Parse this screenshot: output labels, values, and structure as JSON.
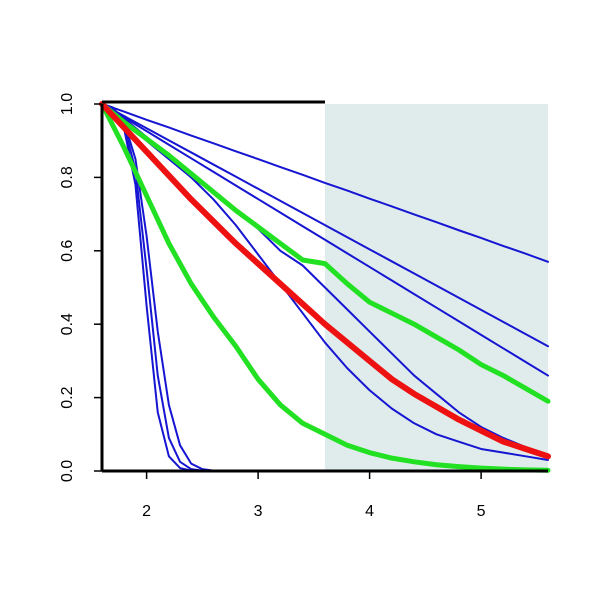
{
  "chart_data": {
    "type": "line",
    "x": [
      1.6,
      1.8,
      2.0,
      2.2,
      2.4,
      2.6,
      2.8,
      3.0,
      3.2,
      3.4,
      3.6,
      3.8,
      4.0,
      4.2,
      4.4,
      4.6,
      4.8,
      5.0,
      5.2,
      5.4,
      5.6
    ],
    "xlim": [
      1.6,
      5.6
    ],
    "xticks": [
      2,
      3,
      4,
      5
    ],
    "ylim": [
      0,
      1
    ],
    "yticks": [
      {
        "value": 0,
        "label": "0.0"
      },
      0.2,
      0.4,
      0.6,
      0.8,
      {
        "value": 1,
        "label": "1.0"
      }
    ],
    "highlight_x": [
      3.6,
      5.6
    ],
    "highlight_color": "#e0ecec",
    "series": [
      {
        "color": "#1515d2",
        "width": 2,
        "values": [
          1,
          0.979,
          0.957,
          0.936,
          0.914,
          0.893,
          0.871,
          0.85,
          0.828,
          0.807,
          0.785,
          0.764,
          0.742,
          0.721,
          0.699,
          0.678,
          0.656,
          0.635,
          0.613,
          0.592,
          0.57
        ]
      },
      {
        "color": "#1515d2",
        "width": 2,
        "values": [
          1,
          0.967,
          0.934,
          0.901,
          0.868,
          0.835,
          0.802,
          0.769,
          0.736,
          0.703,
          0.67,
          0.637,
          0.604,
          0.571,
          0.538,
          0.505,
          0.472,
          0.439,
          0.406,
          0.373,
          0.34
        ]
      },
      {
        "color": "#1515d2",
        "width": 2,
        "values": [
          1,
          0.963,
          0.926,
          0.889,
          0.852,
          0.815,
          0.778,
          0.741,
          0.704,
          0.667,
          0.63,
          0.593,
          0.556,
          0.519,
          0.482,
          0.445,
          0.408,
          0.371,
          0.334,
          0.297,
          0.26
        ]
      },
      {
        "color": "#1515d2",
        "width": 2,
        "values": [
          1,
          0.96,
          0.91,
          0.86,
          0.8,
          0.76,
          0.71,
          0.66,
          0.6,
          0.56,
          0.5,
          0.44,
          0.38,
          0.32,
          0.26,
          0.21,
          0.16,
          0.12,
          0.09,
          0.065,
          0.045
        ]
      },
      {
        "color": "#1515d2",
        "width": 2,
        "values": [
          1,
          0.95,
          0.9,
          0.85,
          0.8,
          0.74,
          0.67,
          0.59,
          0.51,
          0.43,
          0.35,
          0.28,
          0.22,
          0.17,
          0.13,
          0.1,
          0.08,
          0.06,
          0.05,
          0.04,
          0.03
        ]
      },
      {
        "color": "#1515d2",
        "width": 2,
        "x": [
          1.6,
          1.7,
          1.8,
          1.9,
          2.0,
          2.1,
          2.2,
          2.3,
          2.4,
          2.5,
          2.6,
          5.6
        ],
        "values": [
          1,
          0.99,
          0.93,
          0.78,
          0.45,
          0.16,
          0.04,
          0.008,
          0.001,
          0,
          0,
          0
        ]
      },
      {
        "color": "#1515d2",
        "width": 2,
        "x": [
          1.6,
          1.7,
          1.8,
          1.9,
          2.0,
          2.1,
          2.2,
          2.3,
          2.4,
          2.5,
          2.6,
          5.6
        ],
        "values": [
          1,
          0.99,
          0.94,
          0.82,
          0.55,
          0.26,
          0.09,
          0.025,
          0.005,
          0.001,
          0,
          0
        ]
      },
      {
        "color": "#1515d2",
        "width": 2,
        "x": [
          1.6,
          1.7,
          1.8,
          1.9,
          2.0,
          2.1,
          2.2,
          2.3,
          2.4,
          2.5,
          2.6,
          5.6
        ],
        "values": [
          1,
          0.99,
          0.95,
          0.85,
          0.64,
          0.38,
          0.18,
          0.07,
          0.02,
          0.005,
          0.001,
          0
        ]
      },
      {
        "color": "#22e022",
        "width": 5,
        "values": [
          1,
          0.95,
          0.905,
          0.86,
          0.81,
          0.76,
          0.71,
          0.665,
          0.62,
          0.575,
          0.565,
          0.51,
          0.46,
          0.43,
          0.4,
          0.365,
          0.33,
          0.29,
          0.26,
          0.225,
          0.19
        ]
      },
      {
        "color": "#22e022",
        "width": 5,
        "values": [
          1,
          0.88,
          0.75,
          0.62,
          0.51,
          0.42,
          0.34,
          0.25,
          0.18,
          0.13,
          0.1,
          0.07,
          0.05,
          0.035,
          0.025,
          0.017,
          0.012,
          0.008,
          0.005,
          0.003,
          0.002
        ]
      },
      {
        "color": "#ee1111",
        "width": 6,
        "values": [
          1,
          0.935,
          0.87,
          0.805,
          0.74,
          0.68,
          0.62,
          0.565,
          0.51,
          0.455,
          0.4,
          0.35,
          0.3,
          0.25,
          0.21,
          0.175,
          0.14,
          0.11,
          0.08,
          0.06,
          0.04
        ]
      }
    ]
  }
}
